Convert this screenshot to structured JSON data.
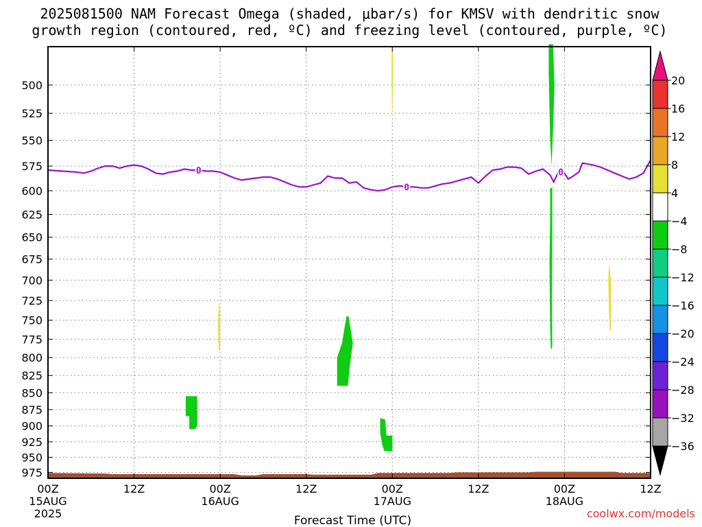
{
  "title": "2025081500 NAM Forecast Omega (shaded, μbar/s) for KMSV with dendritic snow\ngrowth region (contoured, red, ºC) and freezing level (contoured, purple, ºC)",
  "watermark": "coolwx.com/models",
  "chart_data": {
    "type": "heatmap",
    "xlabel": "Forecast Time (UTC)",
    "ylabel": "",
    "x_units": "hours from 2025-08-15 00Z",
    "xlim": [
      0,
      84
    ],
    "x_ticks": [
      {
        "hour": 0,
        "label": [
          "00Z",
          "15AUG",
          "2025"
        ]
      },
      {
        "hour": 12,
        "label": [
          "12Z"
        ]
      },
      {
        "hour": 24,
        "label": [
          "00Z",
          "16AUG"
        ]
      },
      {
        "hour": 36,
        "label": [
          "12Z"
        ]
      },
      {
        "hour": 48,
        "label": [
          "00Z",
          "17AUG"
        ]
      },
      {
        "hour": 60,
        "label": [
          "12Z"
        ]
      },
      {
        "hour": 72,
        "label": [
          "00Z",
          "18AUG"
        ]
      },
      {
        "hour": 84,
        "label": [
          "12Z"
        ]
      }
    ],
    "y_units": "mb",
    "y_scale": "log-pressure (inverted)",
    "ylim": [
      985,
      468
    ],
    "y_ticks": [
      500,
      525,
      550,
      575,
      600,
      625,
      650,
      675,
      700,
      725,
      750,
      775,
      800,
      825,
      850,
      875,
      900,
      925,
      950,
      975
    ],
    "grid": true,
    "colorbar": {
      "placement": "right",
      "labels": [
        "20",
        "16",
        "12",
        "8",
        "4",
        "−4",
        "−8",
        "−12",
        "−16",
        "−20",
        "−24",
        "−28",
        "−32",
        "−36"
      ],
      "bins": [
        {
          "color": "#e8127f"
        },
        {
          "color": "#e8332e"
        },
        {
          "color": "#e8742a"
        },
        {
          "color": "#e8a825"
        },
        {
          "color": "#e6e034"
        },
        {
          "color": "#ffffff"
        },
        {
          "color": "#0fcd12"
        },
        {
          "color": "#10cc85"
        },
        {
          "color": "#10c6c8"
        },
        {
          "color": "#1492e6"
        },
        {
          "color": "#1846e0"
        },
        {
          "color": "#6b23d6"
        },
        {
          "color": "#9a11c0"
        },
        {
          "color": "#a6a6a6"
        },
        {
          "color": "#000000"
        }
      ]
    },
    "freezing_level": {
      "color": "#9a11cc",
      "label": "0",
      "label_hours": [
        21,
        50,
        71.5
      ],
      "points": [
        [
          0,
          579
        ],
        [
          2,
          580
        ],
        [
          4,
          581
        ],
        [
          5,
          582
        ],
        [
          6,
          580
        ],
        [
          7,
          577
        ],
        [
          8,
          575
        ],
        [
          9,
          575
        ],
        [
          10,
          577
        ],
        [
          11,
          575
        ],
        [
          12,
          574
        ],
        [
          13,
          575
        ],
        [
          14,
          578
        ],
        [
          15,
          582
        ],
        [
          16,
          583
        ],
        [
          17,
          581
        ],
        [
          18,
          580
        ],
        [
          19,
          578
        ],
        [
          20,
          579
        ],
        [
          21,
          579
        ],
        [
          22,
          580
        ],
        [
          23,
          580
        ],
        [
          24,
          581
        ],
        [
          25,
          584
        ],
        [
          26,
          587
        ],
        [
          27,
          589
        ],
        [
          28,
          588
        ],
        [
          29,
          587
        ],
        [
          30,
          586
        ],
        [
          31,
          586
        ],
        [
          32,
          588
        ],
        [
          33,
          591
        ],
        [
          34,
          594
        ],
        [
          35,
          596
        ],
        [
          36,
          596
        ],
        [
          37,
          594
        ],
        [
          38,
          592
        ],
        [
          39,
          585
        ],
        [
          40,
          587
        ],
        [
          41,
          587
        ],
        [
          42,
          592
        ],
        [
          43,
          591
        ],
        [
          44,
          597
        ],
        [
          45,
          599
        ],
        [
          46,
          600
        ],
        [
          47,
          599
        ],
        [
          48,
          596
        ],
        [
          49,
          595
        ],
        [
          50,
          596
        ],
        [
          51,
          596
        ],
        [
          52,
          597
        ],
        [
          53,
          597
        ],
        [
          54,
          595
        ],
        [
          55,
          593
        ],
        [
          56,
          592
        ],
        [
          57,
          590
        ],
        [
          58,
          588
        ],
        [
          59,
          586
        ],
        [
          60,
          592
        ],
        [
          61,
          585
        ],
        [
          62,
          579
        ],
        [
          63,
          578
        ],
        [
          64,
          576
        ],
        [
          65,
          576
        ],
        [
          66,
          577
        ],
        [
          67,
          583
        ],
        [
          68,
          580
        ],
        [
          69,
          578
        ],
        [
          70,
          584
        ],
        [
          70.5,
          591
        ],
        [
          71.2,
          580
        ],
        [
          72,
          582
        ],
        [
          72.5,
          588
        ],
        [
          73,
          586
        ],
        [
          74,
          581
        ],
        [
          74.5,
          572
        ],
        [
          76,
          574
        ],
        [
          77,
          576
        ],
        [
          78,
          579
        ],
        [
          79,
          582
        ],
        [
          80,
          585
        ],
        [
          81,
          588
        ],
        [
          82,
          586
        ],
        [
          83,
          582
        ],
        [
          84,
          569
        ]
      ]
    },
    "omega_regions": [
      {
        "value_bin": "4 to 8",
        "color": "#e6e034",
        "points": [
          [
            47.9,
            470
          ],
          [
            48.1,
            470
          ],
          [
            48.1,
            500
          ],
          [
            48.0,
            530
          ],
          [
            47.9,
            500
          ]
        ]
      },
      {
        "value_bin": "-4 to -8",
        "color": "#0fcd12",
        "points": [
          [
            69.8,
            466
          ],
          [
            70.4,
            466
          ],
          [
            70.6,
            500
          ],
          [
            70.4,
            540
          ],
          [
            70.2,
            575
          ],
          [
            70.0,
            550
          ],
          [
            69.9,
            520
          ],
          [
            69.8,
            490
          ]
        ]
      },
      {
        "value_bin": "-4 to -8",
        "color": "#0fcd12",
        "points": [
          [
            70.0,
            597
          ],
          [
            70.3,
            597
          ],
          [
            70.3,
            650
          ],
          [
            70.25,
            720
          ],
          [
            70.3,
            785
          ],
          [
            70.1,
            790
          ],
          [
            70.0,
            760
          ],
          [
            69.9,
            680
          ],
          [
            70.0,
            630
          ]
        ]
      },
      {
        "value_bin": "4 to 8",
        "color": "#e6e034",
        "points": [
          [
            78.2,
            680
          ],
          [
            78.5,
            700
          ],
          [
            78.5,
            760
          ],
          [
            78.3,
            765
          ],
          [
            78.2,
            740
          ],
          [
            78.1,
            700
          ]
        ]
      },
      {
        "value_bin": "4 to 8",
        "color": "#e6e034",
        "points": [
          [
            23.8,
            728
          ],
          [
            24.0,
            740
          ],
          [
            24.0,
            790
          ],
          [
            23.8,
            790
          ],
          [
            23.7,
            760
          ]
        ]
      },
      {
        "value_bin": "-4 to -8",
        "color": "#0fcd12",
        "points": [
          [
            41.6,
            745
          ],
          [
            41.9,
            745
          ],
          [
            42.5,
            780
          ],
          [
            42.1,
            810
          ],
          [
            41.8,
            840
          ],
          [
            40.3,
            840
          ],
          [
            40.3,
            800
          ],
          [
            41.0,
            780
          ]
        ]
      },
      {
        "value_bin": "-4 to -8",
        "color": "#0fcd12",
        "points": [
          [
            19.2,
            855
          ],
          [
            20.8,
            855
          ],
          [
            20.8,
            900
          ],
          [
            20.5,
            905
          ],
          [
            19.7,
            905
          ],
          [
            19.7,
            885
          ],
          [
            19.2,
            885
          ]
        ]
      },
      {
        "value_bin": "-4 to -8",
        "color": "#0fcd12",
        "points": [
          [
            46.3,
            888
          ],
          [
            47.0,
            890
          ],
          [
            47.2,
            915
          ],
          [
            48.0,
            915
          ],
          [
            48.0,
            940
          ],
          [
            46.9,
            940
          ],
          [
            46.6,
            930
          ],
          [
            46.3,
            910
          ]
        ]
      }
    ],
    "terrain": {
      "color": "#a0522d",
      "surface_pressure": [
        [
          0,
          976
        ],
        [
          8,
          977
        ],
        [
          9,
          978
        ],
        [
          26,
          978
        ],
        [
          27,
          980
        ],
        [
          29,
          980
        ],
        [
          30,
          978
        ],
        [
          36,
          978
        ],
        [
          37,
          979
        ],
        [
          45,
          979
        ],
        [
          46,
          976
        ],
        [
          56,
          976
        ],
        [
          57,
          975
        ],
        [
          67,
          975
        ],
        [
          68,
          974
        ],
        [
          79,
          974
        ],
        [
          80,
          976
        ],
        [
          84,
          976
        ]
      ]
    }
  }
}
